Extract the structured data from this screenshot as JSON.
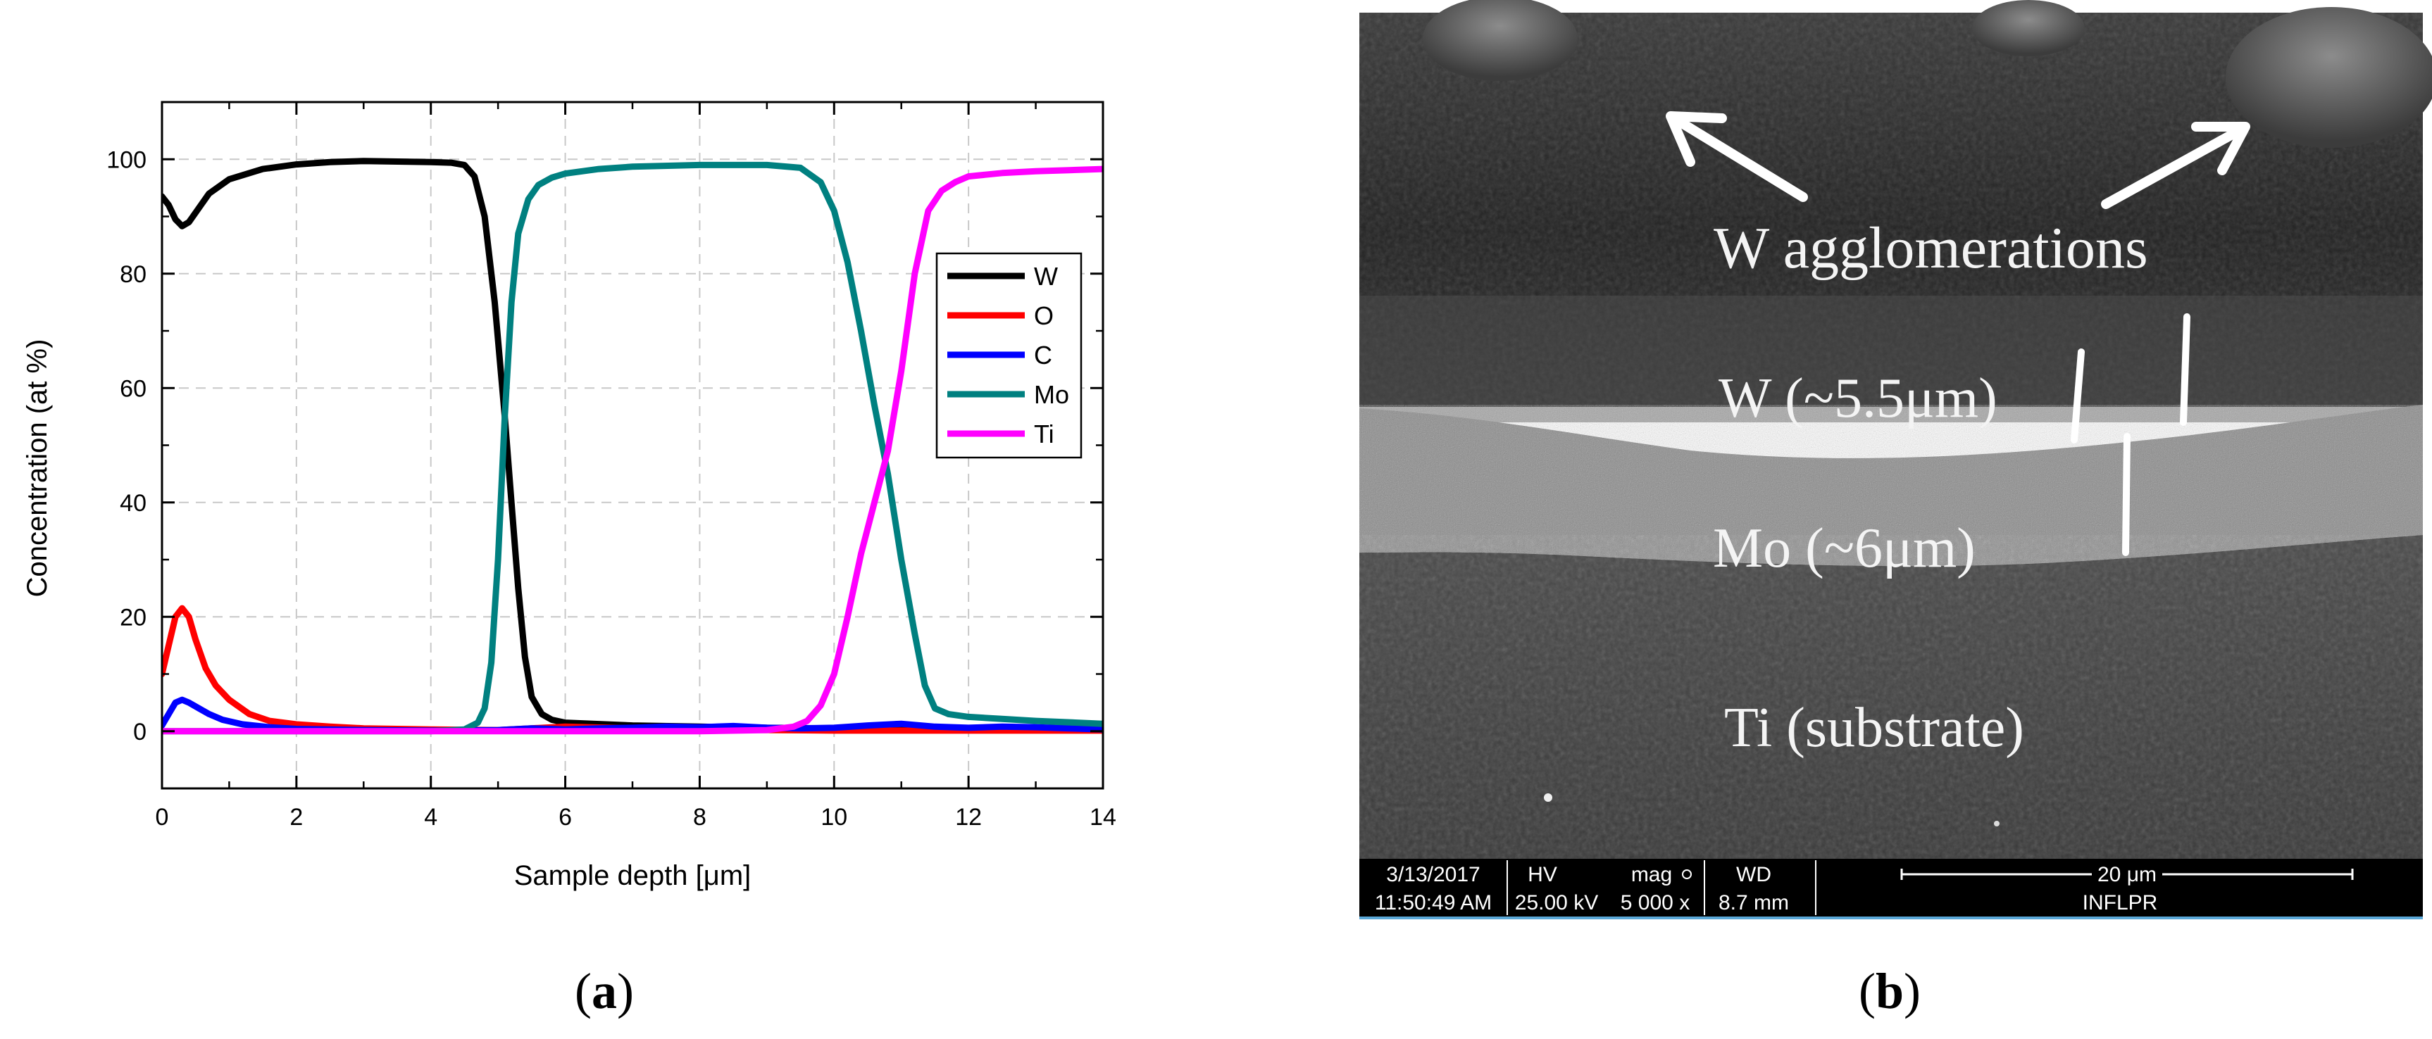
{
  "panels": {
    "a_label": "a",
    "b_label": "b"
  },
  "chart_data": {
    "type": "line",
    "xlabel": "Sample depth [μm]",
    "ylabel": "Concentration (at %)",
    "xlim": [
      0,
      14
    ],
    "ylim": [
      -10,
      110
    ],
    "xticks": [
      0,
      2,
      4,
      6,
      8,
      10,
      12,
      14
    ],
    "yticks": [
      0,
      20,
      40,
      60,
      80,
      100
    ],
    "grid": true,
    "legend_position": "right",
    "series": [
      {
        "name": "W",
        "color": "#000000",
        "points": [
          [
            0,
            93.5
          ],
          [
            0.1,
            92
          ],
          [
            0.2,
            89.5
          ],
          [
            0.3,
            88.3
          ],
          [
            0.4,
            89
          ],
          [
            0.55,
            91.5
          ],
          [
            0.7,
            94
          ],
          [
            1.0,
            96.5
          ],
          [
            1.5,
            98.3
          ],
          [
            2.0,
            99.1
          ],
          [
            2.5,
            99.5
          ],
          [
            3.0,
            99.7
          ],
          [
            3.5,
            99.6
          ],
          [
            4.0,
            99.5
          ],
          [
            4.3,
            99.4
          ],
          [
            4.5,
            99
          ],
          [
            4.65,
            97
          ],
          [
            4.8,
            90
          ],
          [
            4.95,
            75
          ],
          [
            5.1,
            55
          ],
          [
            5.2,
            40
          ],
          [
            5.3,
            25
          ],
          [
            5.4,
            13
          ],
          [
            5.5,
            6
          ],
          [
            5.65,
            3
          ],
          [
            5.8,
            2
          ],
          [
            6.0,
            1.5
          ],
          [
            7.0,
            1.0
          ],
          [
            8.0,
            0.8
          ],
          [
            9.0,
            0.6
          ],
          [
            10.0,
            0.5
          ],
          [
            12.0,
            0.4
          ],
          [
            14.0,
            0.3
          ]
        ]
      },
      {
        "name": "O",
        "color": "#ff0000",
        "points": [
          [
            0,
            10
          ],
          [
            0.1,
            15
          ],
          [
            0.2,
            20
          ],
          [
            0.3,
            21.5
          ],
          [
            0.4,
            20
          ],
          [
            0.5,
            16
          ],
          [
            0.65,
            11
          ],
          [
            0.8,
            8
          ],
          [
            1.0,
            5.5
          ],
          [
            1.3,
            3
          ],
          [
            1.6,
            1.8
          ],
          [
            2.0,
            1.2
          ],
          [
            2.5,
            0.8
          ],
          [
            3.0,
            0.5
          ],
          [
            4.0,
            0.3
          ],
          [
            5.0,
            0.2
          ],
          [
            6.0,
            0.8
          ],
          [
            7.0,
            0.5
          ],
          [
            8.0,
            0.3
          ],
          [
            9.0,
            0.2
          ],
          [
            10.0,
            0.1
          ],
          [
            12.0,
            0.1
          ],
          [
            14.0,
            0.1
          ]
        ]
      },
      {
        "name": "C",
        "color": "#0000ff",
        "points": [
          [
            0,
            1
          ],
          [
            0.1,
            3
          ],
          [
            0.2,
            5
          ],
          [
            0.3,
            5.5
          ],
          [
            0.4,
            5
          ],
          [
            0.55,
            4
          ],
          [
            0.7,
            3
          ],
          [
            0.9,
            2
          ],
          [
            1.2,
            1.2
          ],
          [
            1.6,
            0.7
          ],
          [
            2.0,
            0.4
          ],
          [
            3.0,
            0.2
          ],
          [
            4.0,
            0.1
          ],
          [
            5.0,
            0.2
          ],
          [
            5.5,
            0.5
          ],
          [
            6.0,
            0.3
          ],
          [
            6.5,
            0.5
          ],
          [
            7.0,
            0.6
          ],
          [
            7.5,
            0.8
          ],
          [
            8.0,
            0.7
          ],
          [
            8.5,
            0.9
          ],
          [
            9.0,
            0.6
          ],
          [
            9.5,
            0.5
          ],
          [
            10.0,
            0.6
          ],
          [
            10.5,
            1.0
          ],
          [
            11.0,
            1.3
          ],
          [
            11.5,
            0.8
          ],
          [
            12.0,
            0.6
          ],
          [
            12.5,
            0.8
          ],
          [
            13.0,
            0.7
          ],
          [
            13.5,
            0.5
          ],
          [
            14.0,
            0.3
          ]
        ]
      },
      {
        "name": "Mo",
        "color": "#008080",
        "points": [
          [
            0,
            0
          ],
          [
            1,
            0
          ],
          [
            2,
            0
          ],
          [
            3,
            0
          ],
          [
            4,
            0
          ],
          [
            4.5,
            0.3
          ],
          [
            4.7,
            1.5
          ],
          [
            4.8,
            4
          ],
          [
            4.9,
            12
          ],
          [
            5.0,
            30
          ],
          [
            5.1,
            55
          ],
          [
            5.2,
            75
          ],
          [
            5.3,
            87
          ],
          [
            5.45,
            93
          ],
          [
            5.6,
            95.5
          ],
          [
            5.8,
            96.8
          ],
          [
            6.0,
            97.5
          ],
          [
            6.5,
            98.3
          ],
          [
            7.0,
            98.7
          ],
          [
            8.0,
            99
          ],
          [
            9.0,
            99
          ],
          [
            9.5,
            98.5
          ],
          [
            9.8,
            96
          ],
          [
            10.0,
            91
          ],
          [
            10.2,
            82
          ],
          [
            10.4,
            70
          ],
          [
            10.6,
            57
          ],
          [
            10.8,
            45
          ],
          [
            11.0,
            30
          ],
          [
            11.2,
            17
          ],
          [
            11.35,
            8
          ],
          [
            11.5,
            4
          ],
          [
            11.7,
            3
          ],
          [
            12.0,
            2.5
          ],
          [
            13.0,
            1.8
          ],
          [
            14.0,
            1.3
          ]
        ]
      },
      {
        "name": "Ti",
        "color": "#ff00ff",
        "points": [
          [
            0,
            0
          ],
          [
            2,
            0
          ],
          [
            4,
            0
          ],
          [
            6,
            0
          ],
          [
            8,
            0
          ],
          [
            9,
            0.2
          ],
          [
            9.4,
            0.8
          ],
          [
            9.6,
            1.8
          ],
          [
            9.8,
            4.5
          ],
          [
            10.0,
            10
          ],
          [
            10.2,
            20
          ],
          [
            10.4,
            31
          ],
          [
            10.6,
            40
          ],
          [
            10.8,
            49
          ],
          [
            11.0,
            63
          ],
          [
            11.2,
            80
          ],
          [
            11.4,
            91
          ],
          [
            11.6,
            94.5
          ],
          [
            11.8,
            96
          ],
          [
            12.0,
            97
          ],
          [
            12.5,
            97.6
          ],
          [
            13.0,
            97.9
          ],
          [
            13.5,
            98.1
          ],
          [
            14.0,
            98.3
          ]
        ]
      }
    ]
  },
  "sem": {
    "labels": {
      "agglomerations": "W agglomerations",
      "w_layer": "W (~5.5μm)",
      "mo_layer": "Mo (~6μm)",
      "ti_layer": "Ti (substrate)"
    },
    "infobar": {
      "date": "3/13/2017",
      "time": "11:50:49 AM",
      "hv_label": "HV",
      "hv_value": "25.00 kV",
      "mag_label": "mag",
      "mag_value": "5 000 x",
      "wd_label": "WD",
      "wd_value": "8.7 mm",
      "scale_label": "20 μm",
      "institution": "INFLPR"
    }
  }
}
